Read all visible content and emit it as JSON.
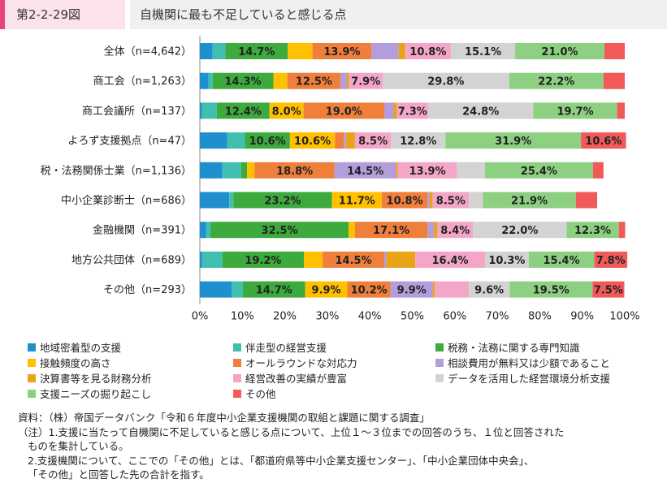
{
  "figure": {
    "label": "第2-2-29図",
    "title": "自機関に最も不足していると感じる点"
  },
  "chart_data": {
    "type": "bar",
    "orientation": "horizontal",
    "stacked": "percent",
    "xlim": [
      0,
      100
    ],
    "x_ticks": [
      "0%",
      "10%",
      "20%",
      "30%",
      "40%",
      "50%",
      "60%",
      "70%",
      "80%",
      "90%",
      "100%"
    ],
    "categories": [
      "全体（n=4,642）",
      "商工会（n=1,263）",
      "商工会議所（n=137）",
      "よろず支援拠点（n=47）",
      "税・法務関係士業（n=1,136）",
      "中小企業診断士（n=686）",
      "金融機関（n=391）",
      "地方公共団体（n=689）",
      "その他（n=293）"
    ],
    "series": [
      {
        "name": "地域密着型の支援",
        "color": "#1f8fce",
        "values": [
          3.0,
          2.0,
          0.5,
          6.4,
          5.3,
          6.9,
          1.5,
          0.5,
          7.5
        ]
      },
      {
        "name": "伴走型の経営支援",
        "color": "#40bfb0",
        "values": [
          3.0,
          1.0,
          3.5,
          4.2,
          4.4,
          1.0,
          1.0,
          4.8,
          2.6
        ]
      },
      {
        "name": "税務・法務に関する専門知識",
        "color": "#3caa3c",
        "values": [
          14.7,
          14.3,
          12.4,
          10.6,
          1.4,
          23.2,
          32.5,
          19.2,
          14.7
        ]
      },
      {
        "name": "接触頻度の高さ",
        "color": "#ffc000",
        "values": [
          5.8,
          3.3,
          8.0,
          10.6,
          1.8,
          11.7,
          1.5,
          4.4,
          9.9
        ]
      },
      {
        "name": "オールラウンドな対応力",
        "color": "#f07f3c",
        "values": [
          13.9,
          12.5,
          19.0,
          2.1,
          18.8,
          10.8,
          17.1,
          14.5,
          10.2
        ]
      },
      {
        "name": "相談費用が無料又は少額であること",
        "color": "#b39ddb",
        "values": [
          6.4,
          1.5,
          2.2,
          0.5,
          14.5,
          0.5,
          1.5,
          0.5,
          9.9
        ]
      },
      {
        "name": "決算書等を見る財務分析",
        "color": "#e8a317",
        "values": [
          1.5,
          0.5,
          0.8,
          2.1,
          0.4,
          0.7,
          0.8,
          6.8,
          0.5
        ]
      },
      {
        "name": "経営改善の実績が豊富",
        "color": "#f4a6c8",
        "values": [
          10.8,
          7.9,
          7.3,
          8.5,
          13.9,
          8.5,
          8.4,
          16.4,
          8.0
        ]
      },
      {
        "name": "データを活用した経営環境分析支援",
        "color": "#d3d3d3",
        "values": [
          15.1,
          29.8,
          24.8,
          12.8,
          6.6,
          3.3,
          22.0,
          10.3,
          9.6
        ]
      },
      {
        "name": "支援ニーズの掘り起こし",
        "color": "#8ed081",
        "values": [
          21.0,
          22.2,
          19.7,
          31.9,
          25.4,
          21.9,
          12.3,
          15.4,
          19.5
        ]
      },
      {
        "name": "その他",
        "color": "#f25a5a",
        "values": [
          4.8,
          5.0,
          1.8,
          10.6,
          2.5,
          5.0,
          1.5,
          7.8,
          7.5
        ]
      }
    ],
    "data_labels": [
      {
        "row": 0,
        "series": 2,
        "text": "14.7%"
      },
      {
        "row": 0,
        "series": 4,
        "text": "13.9%"
      },
      {
        "row": 0,
        "series": 7,
        "text": "10.8%"
      },
      {
        "row": 0,
        "series": 8,
        "text": "15.1%"
      },
      {
        "row": 0,
        "series": 9,
        "text": "21.0%"
      },
      {
        "row": 1,
        "series": 2,
        "text": "14.3%"
      },
      {
        "row": 1,
        "series": 4,
        "text": "12.5%"
      },
      {
        "row": 1,
        "series": 7,
        "text": "7.9%"
      },
      {
        "row": 1,
        "series": 8,
        "text": "29.8%"
      },
      {
        "row": 1,
        "series": 9,
        "text": "22.2%"
      },
      {
        "row": 2,
        "series": 2,
        "text": "12.4%"
      },
      {
        "row": 2,
        "series": 3,
        "text": "8.0%"
      },
      {
        "row": 2,
        "series": 4,
        "text": "19.0%"
      },
      {
        "row": 2,
        "series": 7,
        "text": "7.3%"
      },
      {
        "row": 2,
        "series": 8,
        "text": "24.8%"
      },
      {
        "row": 2,
        "series": 9,
        "text": "19.7%"
      },
      {
        "row": 3,
        "series": 2,
        "text": "10.6%"
      },
      {
        "row": 3,
        "series": 3,
        "text": "10.6%"
      },
      {
        "row": 3,
        "series": 7,
        "text": "8.5%"
      },
      {
        "row": 3,
        "series": 8,
        "text": "12.8%"
      },
      {
        "row": 3,
        "series": 9,
        "text": "31.9%"
      },
      {
        "row": 3,
        "series": 10,
        "text": "10.6%"
      },
      {
        "row": 4,
        "series": 4,
        "text": "18.8%"
      },
      {
        "row": 4,
        "series": 5,
        "text": "14.5%"
      },
      {
        "row": 4,
        "series": 7,
        "text": "13.9%"
      },
      {
        "row": 4,
        "series": 9,
        "text": "25.4%"
      },
      {
        "row": 5,
        "series": 2,
        "text": "23.2%"
      },
      {
        "row": 5,
        "series": 3,
        "text": "11.7%"
      },
      {
        "row": 5,
        "series": 4,
        "text": "10.8%"
      },
      {
        "row": 5,
        "series": 7,
        "text": "8.5%"
      },
      {
        "row": 5,
        "series": 9,
        "text": "21.9%"
      },
      {
        "row": 6,
        "series": 2,
        "text": "32.5%"
      },
      {
        "row": 6,
        "series": 4,
        "text": "17.1%"
      },
      {
        "row": 6,
        "series": 7,
        "text": "8.4%"
      },
      {
        "row": 6,
        "series": 8,
        "text": "22.0%"
      },
      {
        "row": 6,
        "series": 9,
        "text": "12.3%"
      },
      {
        "row": 7,
        "series": 2,
        "text": "19.2%"
      },
      {
        "row": 7,
        "series": 4,
        "text": "14.5%"
      },
      {
        "row": 7,
        "series": 7,
        "text": "16.4%"
      },
      {
        "row": 7,
        "series": 8,
        "text": "10.3%"
      },
      {
        "row": 7,
        "series": 9,
        "text": "15.4%"
      },
      {
        "row": 7,
        "series": 10,
        "text": "7.8%"
      },
      {
        "row": 8,
        "series": 2,
        "text": "14.7%"
      },
      {
        "row": 8,
        "series": 3,
        "text": "9.9%"
      },
      {
        "row": 8,
        "series": 4,
        "text": "10.2%"
      },
      {
        "row": 8,
        "series": 5,
        "text": "9.9%"
      },
      {
        "row": 8,
        "series": 8,
        "text": "9.6%"
      },
      {
        "row": 8,
        "series": 9,
        "text": "19.5%"
      },
      {
        "row": 8,
        "series": 10,
        "text": "7.5%"
      }
    ],
    "legend_position": "bottom",
    "grid": false
  },
  "notes": {
    "source": "資料：（株）帝国データバンク「令和６年度中小企業支援機関の取組と課題に関する調査」",
    "note1_line1": "（注）1.支援に当たって自機関に不足していると感じる点について、上位１～３位までの回答のうち、１位と回答された",
    "note1_line2": "ものを集計している。",
    "note2_line1": "2.支援機関について、ここでの「その他」とは、「都道府県等中小企業支援センター」、「中小企業団体中央会」、",
    "note2_line2": "「その他」と回答した先の合計を指す。"
  }
}
